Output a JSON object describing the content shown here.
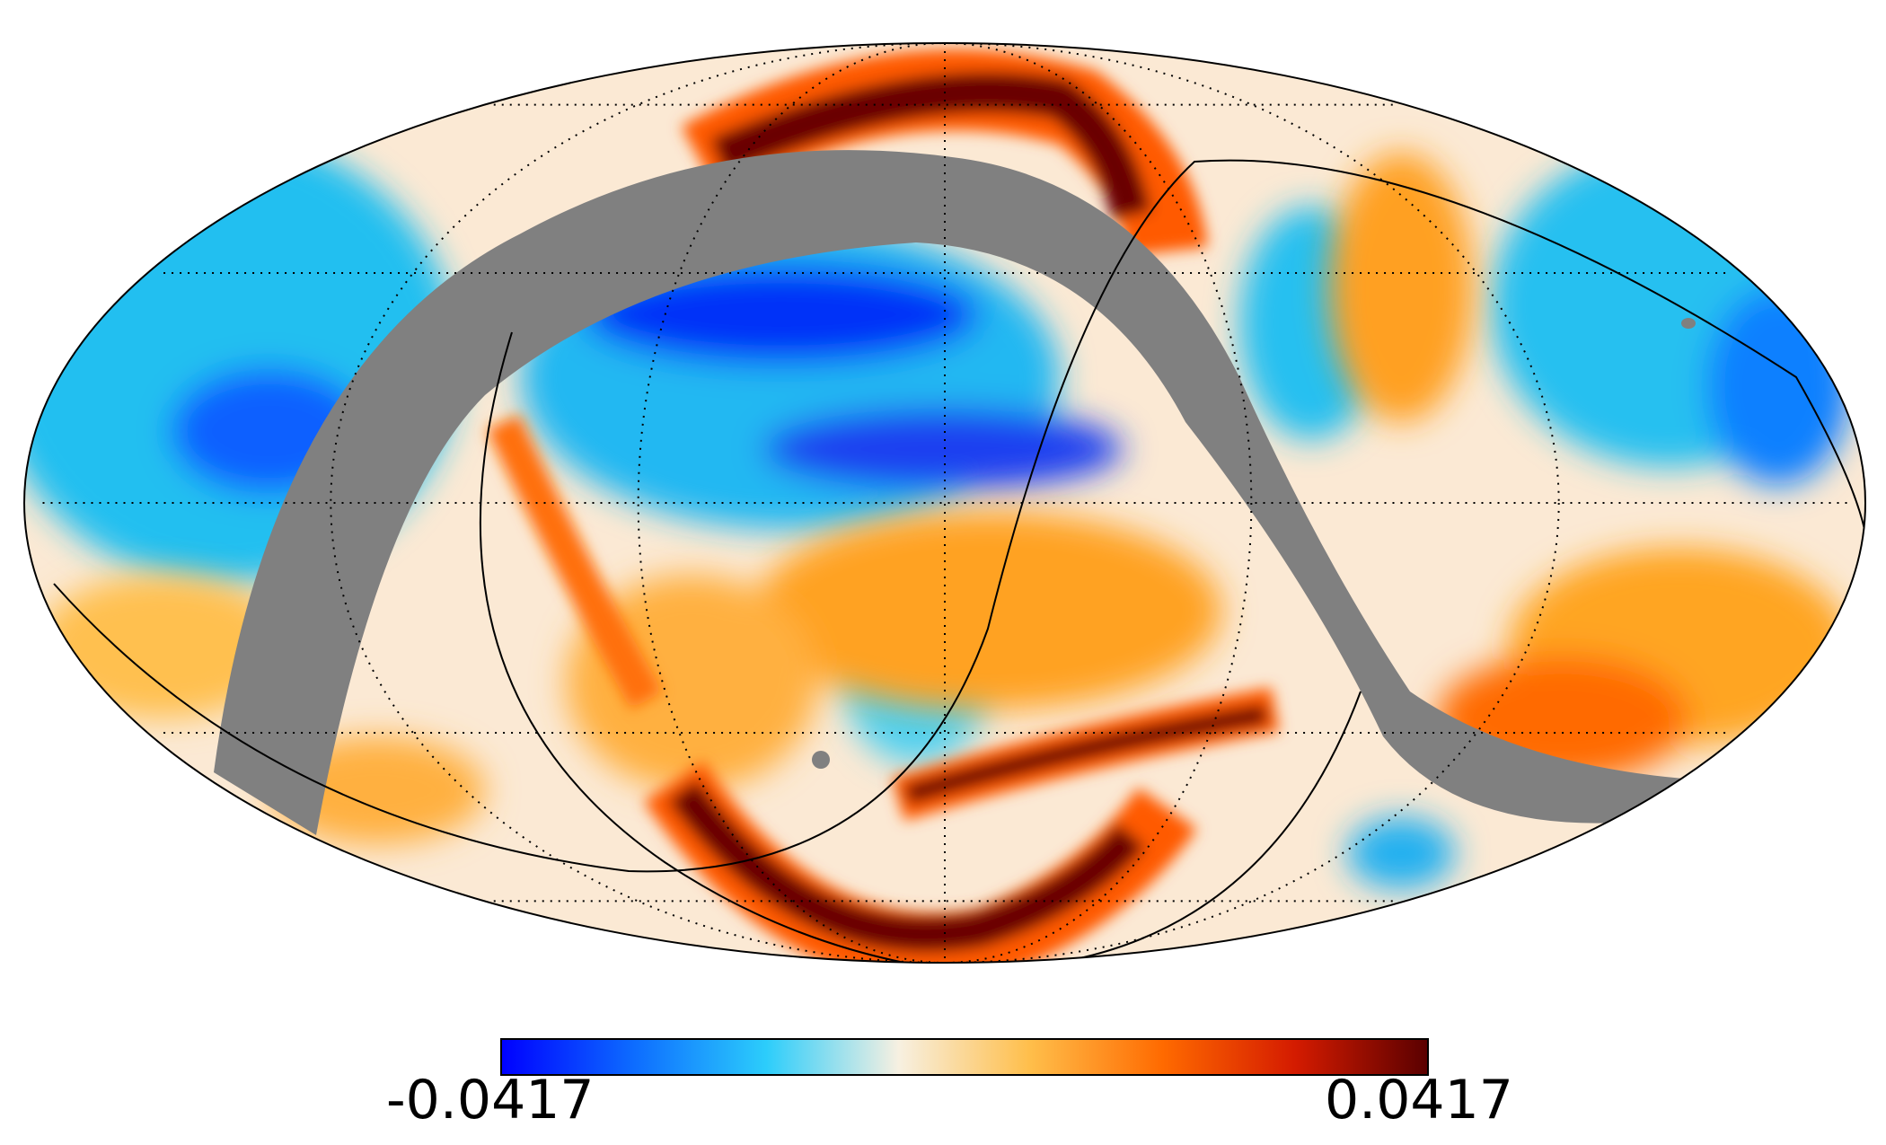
{
  "figure": {
    "projection": "mollweide",
    "mask_color": "#808080",
    "graticule": "dotted",
    "grid_lines": "solid"
  },
  "colorbar": {
    "min_label": "-0.0417",
    "max_label": "0.0417",
    "colormap": [
      "#0000ff",
      "#0d6cff",
      "#2ccdfb",
      "#f7f0e1",
      "#ffbe4a",
      "#ff6a00",
      "#d41b00",
      "#5a0000"
    ]
  }
}
